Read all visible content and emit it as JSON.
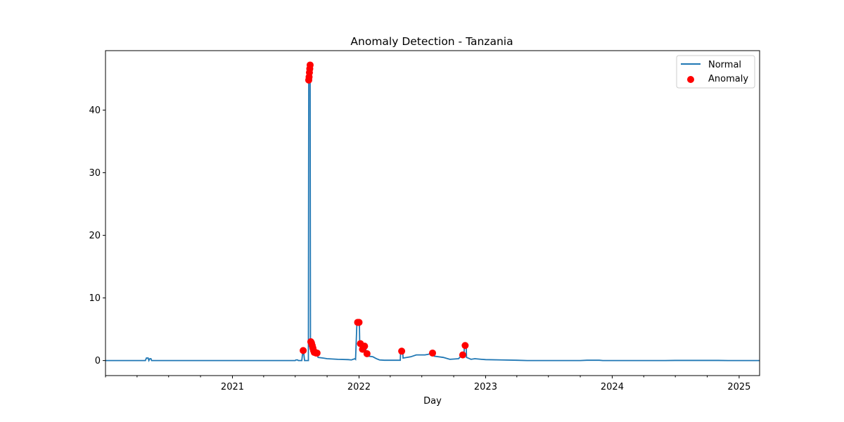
{
  "chart_data": {
    "type": "line",
    "title": "Anomaly Detection - Tanzania",
    "xlabel": "Day",
    "ylabel": "",
    "x_axis": {
      "type": "date",
      "range": [
        "2020-01-01",
        "2025-03-01"
      ],
      "tick_labels": [
        "2021",
        "2022",
        "2023",
        "2024",
        "2025"
      ],
      "tick_dates": [
        "2021-01-01",
        "2022-01-01",
        "2023-01-01",
        "2024-01-01",
        "2025-01-01"
      ]
    },
    "y_axis": {
      "range": [
        -2.4,
        49.5
      ],
      "ticks": [
        0,
        10,
        20,
        30,
        40
      ]
    },
    "grid": false,
    "legend": {
      "placement": "top-right",
      "entries": [
        "Normal",
        "Anomaly"
      ]
    },
    "colors": {
      "normal": "#1f77b4",
      "anomaly": "#ff0000"
    },
    "series": [
      {
        "name": "Normal",
        "kind": "line",
        "points": [
          [
            "2020-01-01",
            0
          ],
          [
            "2020-04-25",
            0
          ],
          [
            "2020-04-28",
            0.4
          ],
          [
            "2020-05-03",
            0.4
          ],
          [
            "2020-05-05",
            0
          ],
          [
            "2020-05-08",
            0.3
          ],
          [
            "2020-05-11",
            0.3
          ],
          [
            "2020-05-13",
            0
          ],
          [
            "2021-07-01",
            0
          ],
          [
            "2021-07-03",
            0.1
          ],
          [
            "2021-07-08",
            0.1
          ],
          [
            "2021-07-10",
            0
          ],
          [
            "2021-07-20",
            0
          ],
          [
            "2021-07-22",
            1.0
          ],
          [
            "2021-07-26",
            1.0
          ],
          [
            "2021-07-28",
            0
          ],
          [
            "2021-08-08",
            0
          ],
          [
            "2021-08-09",
            44.8
          ],
          [
            "2021-08-10",
            45.3
          ],
          [
            "2021-08-11",
            46.0
          ],
          [
            "2021-08-12",
            46.6
          ],
          [
            "2021-08-13",
            47.2
          ],
          [
            "2021-08-14",
            3.0
          ],
          [
            "2021-08-16",
            3.0
          ],
          [
            "2021-08-18",
            2.6
          ],
          [
            "2021-08-20",
            2.2
          ],
          [
            "2021-08-22",
            1.8
          ],
          [
            "2021-08-24",
            1.4
          ],
          [
            "2021-08-27",
            1.2
          ],
          [
            "2021-09-02",
            1.2
          ],
          [
            "2021-09-05",
            0.5
          ],
          [
            "2021-09-20",
            0.4
          ],
          [
            "2021-10-01",
            0.3
          ],
          [
            "2021-11-01",
            0.2
          ],
          [
            "2021-12-01",
            0.15
          ],
          [
            "2021-12-10",
            0.1
          ],
          [
            "2021-12-20",
            0.3
          ],
          [
            "2021-12-22",
            0.2
          ],
          [
            "2021-12-26",
            6.1
          ],
          [
            "2022-01-02",
            6.1
          ],
          [
            "2022-01-03",
            2.7
          ],
          [
            "2022-01-07",
            2.7
          ],
          [
            "2022-01-09",
            1.8
          ],
          [
            "2022-01-13",
            1.8
          ],
          [
            "2022-01-15",
            2.3
          ],
          [
            "2022-01-20",
            2.3
          ],
          [
            "2022-01-22",
            1.1
          ],
          [
            "2022-01-27",
            1.1
          ],
          [
            "2022-01-29",
            0.7
          ],
          [
            "2022-02-10",
            0.6
          ],
          [
            "2022-02-20",
            0.3
          ],
          [
            "2022-03-01",
            0.1
          ],
          [
            "2022-03-15",
            0.05
          ],
          [
            "2022-04-30",
            0.05
          ],
          [
            "2022-05-01",
            1.5
          ],
          [
            "2022-05-07",
            1.5
          ],
          [
            "2022-05-08",
            0.4
          ],
          [
            "2022-05-30",
            0.6
          ],
          [
            "2022-06-15",
            0.9
          ],
          [
            "2022-07-10",
            0.9
          ],
          [
            "2022-07-20",
            1.0
          ],
          [
            "2022-07-29",
            1.2
          ],
          [
            "2022-08-05",
            1.2
          ],
          [
            "2022-08-06",
            0.7
          ],
          [
            "2022-09-01",
            0.5
          ],
          [
            "2022-09-20",
            0.2
          ],
          [
            "2022-10-15",
            0.3
          ],
          [
            "2022-10-25",
            0.9
          ],
          [
            "2022-10-29",
            0.9
          ],
          [
            "2022-10-30",
            0.4
          ],
          [
            "2022-11-01",
            2.4
          ],
          [
            "2022-11-06",
            2.4
          ],
          [
            "2022-11-07",
            0.5
          ],
          [
            "2022-11-20",
            0.2
          ],
          [
            "2022-12-01",
            0.3
          ],
          [
            "2022-12-20",
            0.2
          ],
          [
            "2023-01-01",
            0.15
          ],
          [
            "2023-02-15",
            0.1
          ],
          [
            "2023-04-01",
            0.05
          ],
          [
            "2023-05-01",
            0
          ],
          [
            "2023-10-01",
            0
          ],
          [
            "2023-10-20",
            0.05
          ],
          [
            "2023-11-25",
            0.05
          ],
          [
            "2023-12-05",
            0
          ],
          [
            "2024-06-01",
            0
          ],
          [
            "2024-07-01",
            0.02
          ],
          [
            "2024-11-01",
            0.02
          ],
          [
            "2024-12-01",
            0
          ],
          [
            "2025-03-01",
            0
          ]
        ]
      },
      {
        "name": "Anomaly",
        "kind": "scatter",
        "points": [
          [
            "2021-07-24",
            1.6
          ],
          [
            "2021-08-09",
            44.8
          ],
          [
            "2021-08-10",
            45.3
          ],
          [
            "2021-08-11",
            46.0
          ],
          [
            "2021-08-12",
            46.6
          ],
          [
            "2021-08-13",
            47.2
          ],
          [
            "2021-08-15",
            3.0
          ],
          [
            "2021-08-17",
            2.8
          ],
          [
            "2021-08-19",
            2.4
          ],
          [
            "2021-08-21",
            2.0
          ],
          [
            "2021-08-23",
            1.6
          ],
          [
            "2021-08-25",
            1.3
          ],
          [
            "2021-08-30",
            1.2
          ],
          [
            "2021-09-02",
            1.2
          ],
          [
            "2021-12-28",
            6.1
          ],
          [
            "2022-01-01",
            6.1
          ],
          [
            "2022-01-05",
            2.7
          ],
          [
            "2022-01-11",
            1.8
          ],
          [
            "2022-01-17",
            2.3
          ],
          [
            "2022-01-24",
            1.1
          ],
          [
            "2022-05-04",
            1.5
          ],
          [
            "2022-08-01",
            1.2
          ],
          [
            "2022-10-27",
            0.9
          ],
          [
            "2022-11-03",
            2.4
          ]
        ]
      }
    ]
  }
}
